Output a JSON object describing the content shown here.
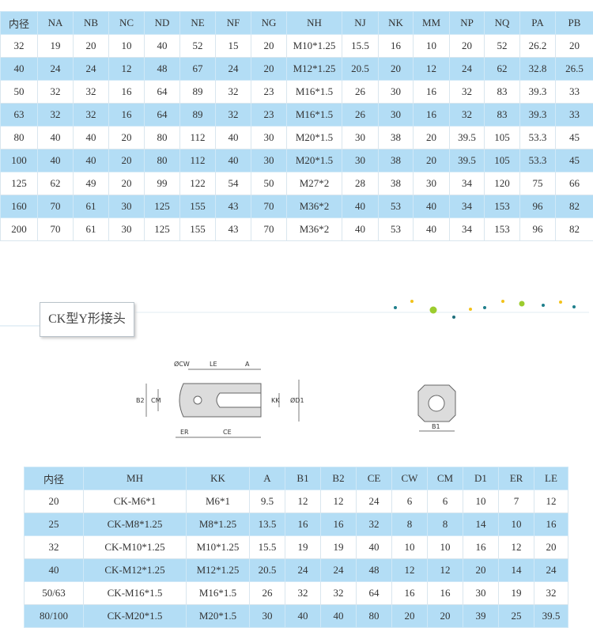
{
  "top_table": {
    "header": [
      "内径",
      "NA",
      "NB",
      "NC",
      "ND",
      "NE",
      "NF",
      "NG",
      "NH",
      "NJ",
      "NK",
      "MM",
      "NP",
      "NQ",
      "PA",
      "PB"
    ],
    "rows": [
      [
        32,
        19,
        20,
        10,
        40,
        52,
        15,
        20,
        "M10*1.25",
        15.5,
        16,
        10,
        20,
        52,
        26.2,
        20
      ],
      [
        40,
        24,
        24,
        12,
        48,
        67,
        24,
        20,
        "M12*1.25",
        20.5,
        20,
        12,
        24,
        62,
        32.8,
        26.5
      ],
      [
        50,
        32,
        32,
        16,
        64,
        89,
        32,
        23,
        "M16*1.5",
        26,
        30,
        16,
        32,
        83,
        39.3,
        33
      ],
      [
        63,
        32,
        32,
        16,
        64,
        89,
        32,
        23,
        "M16*1.5",
        26,
        30,
        16,
        32,
        83,
        39.3,
        33
      ],
      [
        80,
        40,
        40,
        20,
        80,
        112,
        40,
        30,
        "M20*1.5",
        30,
        38,
        20,
        39.5,
        105,
        53.3,
        45
      ],
      [
        100,
        40,
        40,
        20,
        80,
        112,
        40,
        30,
        "M20*1.5",
        30,
        38,
        20,
        39.5,
        105,
        53.3,
        45
      ],
      [
        125,
        62,
        49,
        20,
        99,
        122,
        54,
        50,
        "M27*2",
        28,
        38,
        30,
        34,
        120,
        75,
        66
      ],
      [
        160,
        70,
        61,
        30,
        125,
        155,
        43,
        70,
        "M36*2",
        40,
        53,
        40,
        34,
        153,
        96,
        82
      ],
      [
        200,
        70,
        61,
        30,
        125,
        155,
        43,
        70,
        "M36*2",
        40,
        53,
        40,
        34,
        153,
        96,
        82
      ]
    ]
  },
  "section": {
    "title": "CK型Y形接头"
  },
  "diagram": {
    "labels": {
      "cw": "ØCW",
      "le": "LE",
      "a": "A",
      "b2": "B2",
      "cm": "CM",
      "kk": "KK",
      "d1": "ØD1",
      "er": "ER",
      "ce": "CE",
      "b1": "B1"
    }
  },
  "bottom_table": {
    "header": [
      "内径",
      "MH",
      "KK",
      "A",
      "B1",
      "B2",
      "CE",
      "CW",
      "CM",
      "D1",
      "ER",
      "LE"
    ],
    "rows": [
      [
        20,
        "CK-M6*1",
        "M6*1",
        9.5,
        12,
        12,
        24,
        6,
        6,
        10,
        7,
        12
      ],
      [
        25,
        "CK-M8*1.25",
        "M8*1.25",
        13.5,
        16,
        16,
        32,
        8,
        8,
        14,
        10,
        16
      ],
      [
        32,
        "CK-M10*1.25",
        "M10*1.25",
        15.5,
        19,
        19,
        40,
        10,
        10,
        16,
        12,
        20
      ],
      [
        40,
        "CK-M12*1.25",
        "M12*1.25",
        20.5,
        24,
        24,
        48,
        12,
        12,
        20,
        14,
        24
      ],
      [
        "50/63",
        "CK-M16*1.5",
        "M16*1.5",
        26,
        32,
        32,
        64,
        16,
        16,
        30,
        19,
        32
      ],
      [
        "80/100",
        "CK-M20*1.5",
        "M20*1.5",
        30,
        40,
        40,
        80,
        20,
        20,
        39,
        25,
        39.5
      ]
    ]
  }
}
